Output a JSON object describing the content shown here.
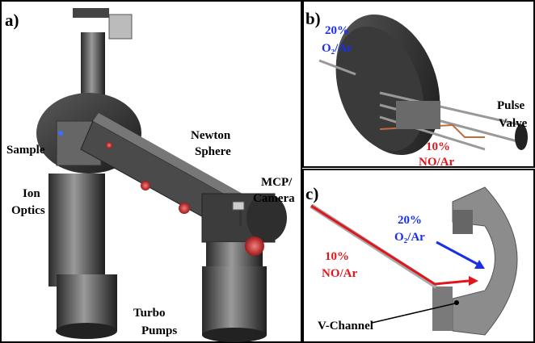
{
  "panel_a": {
    "label": "a)",
    "sample": "Sample",
    "ion_optics": [
      "Ion",
      "Optics"
    ],
    "newton_sphere": [
      "Newton",
      "Sphere"
    ],
    "mcp_camera": [
      "MCP/",
      "Camera"
    ],
    "turbo_pumps": [
      "Turbo",
      "Pumps"
    ]
  },
  "panel_b": {
    "label": "b)",
    "o2_ar": [
      "20%",
      "O₂/Ar"
    ],
    "no_ar": [
      "10%",
      "NO/Ar"
    ],
    "pulse_valve": [
      "Pulse",
      "Valve"
    ]
  },
  "panel_c": {
    "label": "c)",
    "o2_ar": [
      "20%",
      "O₂/Ar"
    ],
    "no_ar": [
      "10%",
      "NO/Ar"
    ],
    "v_channel": "V-Channel"
  }
}
